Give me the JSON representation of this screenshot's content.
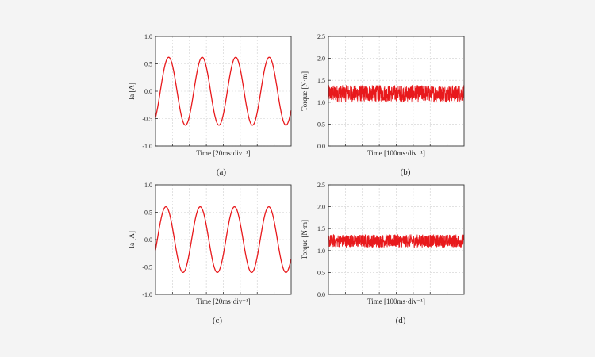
{
  "figure": {
    "captions": [
      "(a)",
      "(b)",
      "(c)",
      "(d)"
    ]
  },
  "colors": {
    "trace": "#e8191c",
    "grid": "#cfcfcf",
    "axis": "#333333",
    "background": "#f4f4f4",
    "plot_background": "#ffffff"
  },
  "chart_data": [
    {
      "type": "line",
      "panel": "(a)",
      "title": "",
      "xlabel": "Time [20ms·div⁻¹]",
      "ylabel": "Ia [A]",
      "ylim": [
        -1.0,
        1.0
      ],
      "yticks": [
        "-1.0",
        "-0.5",
        "0.0",
        "0.5",
        "1.0"
      ],
      "xlim": [
        0,
        170
      ],
      "x_grid_divisions": 8,
      "grid": true,
      "series": [
        {
          "waveform": "sine",
          "amplitude": 0.62,
          "offset": 0.0,
          "period_ms": 42.0,
          "peak_times_ms": [
            16.5,
            58.5,
            100.5,
            142.5
          ]
        }
      ]
    },
    {
      "type": "line",
      "panel": "(b)",
      "title": "",
      "xlabel": "Time [100ms·div⁻¹]",
      "ylabel": "Torque [N·m]",
      "ylim": [
        0.0,
        2.5
      ],
      "yticks": [
        "0.0",
        "0.5",
        "1.0",
        "1.5",
        "2.0",
        "2.5"
      ],
      "xlim": [
        0,
        800
      ],
      "x_grid_divisions": 8,
      "grid": true,
      "series": [
        {
          "waveform": "ripple",
          "mean": 1.2,
          "min": 1.02,
          "max": 1.4
        }
      ]
    },
    {
      "type": "line",
      "panel": "(c)",
      "title": "",
      "xlabel": "Time [20ms·div⁻¹]",
      "ylabel": "Ia [A]",
      "ylim": [
        -1.0,
        1.0
      ],
      "yticks": [
        "-1.0",
        "-0.5",
        "0.0",
        "0.5",
        "1.0"
      ],
      "xlim": [
        0,
        170
      ],
      "x_grid_divisions": 8,
      "grid": true,
      "series": [
        {
          "waveform": "sine",
          "amplitude": 0.6,
          "offset": 0.0,
          "period_ms": 43.0,
          "peak_times_ms": [
            13.0,
            56.0,
            99.0,
            142.0
          ]
        }
      ]
    },
    {
      "type": "line",
      "panel": "(d)",
      "title": "",
      "xlabel": "Time [100ms·div⁻¹]",
      "ylabel": "Torque [N·m]",
      "ylim": [
        0.0,
        2.5
      ],
      "yticks": [
        "0.0",
        "0.5",
        "1.0",
        "1.5",
        "2.0",
        "2.5"
      ],
      "xlim": [
        0,
        800
      ],
      "x_grid_divisions": 8,
      "grid": true,
      "series": [
        {
          "waveform": "ripple",
          "mean": 1.22,
          "min": 1.08,
          "max": 1.38
        }
      ]
    }
  ]
}
